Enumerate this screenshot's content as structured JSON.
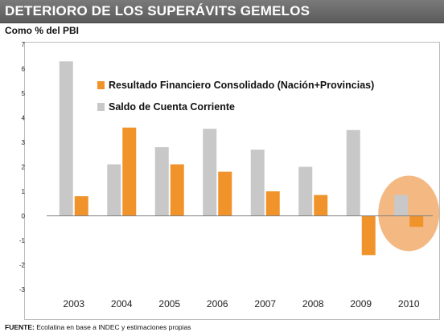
{
  "header": {
    "title": "DETERIORO DE LOS SUPERÁVITS GEMELOS",
    "subtitle": "Como % del PBI"
  },
  "footer": {
    "source_label": "FUENTE:",
    "source_text": "Ecolatina en base a INDEC y estimaciones propias"
  },
  "chart_data": {
    "type": "bar",
    "title": "DETERIORO DE LOS SUPERÁVITS GEMELOS",
    "ylabel": "Como % del PBI",
    "xlabel": "",
    "categories": [
      "2003",
      "2004",
      "2005",
      "2006",
      "2007",
      "2008",
      "2009",
      "2010"
    ],
    "series": [
      {
        "name": "Saldo de Cuenta Corriente",
        "color": "#c8c8c8",
        "values": [
          6.3,
          2.1,
          2.8,
          3.55,
          2.7,
          2.0,
          3.5,
          0.85
        ]
      },
      {
        "name": "Resultado Financiero Consolidado (Nación+Provincias)",
        "color": "#f0932b",
        "values": [
          0.8,
          3.6,
          2.1,
          1.8,
          1.0,
          0.85,
          -1.6,
          -0.45
        ]
      }
    ],
    "ylim": [
      -3,
      7
    ],
    "yticks": [
      "-3",
      "-2",
      "-1",
      "0",
      "1",
      "2",
      "3",
      "4",
      "5",
      "6",
      "7"
    ],
    "grid": false,
    "legend_position": "top-center",
    "highlight": {
      "category": "2010",
      "color": "#f0a25a"
    }
  }
}
